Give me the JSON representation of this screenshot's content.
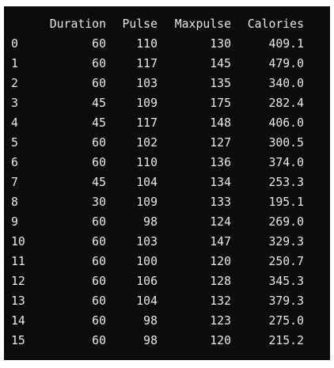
{
  "table": {
    "columns": [
      "Duration",
      "Pulse",
      "Maxpulse",
      "Calories"
    ],
    "rows": [
      {
        "index": "0",
        "Duration": "60",
        "Pulse": "110",
        "Maxpulse": "130",
        "Calories": "409.1"
      },
      {
        "index": "1",
        "Duration": "60",
        "Pulse": "117",
        "Maxpulse": "145",
        "Calories": "479.0"
      },
      {
        "index": "2",
        "Duration": "60",
        "Pulse": "103",
        "Maxpulse": "135",
        "Calories": "340.0"
      },
      {
        "index": "3",
        "Duration": "45",
        "Pulse": "109",
        "Maxpulse": "175",
        "Calories": "282.4"
      },
      {
        "index": "4",
        "Duration": "45",
        "Pulse": "117",
        "Maxpulse": "148",
        "Calories": "406.0"
      },
      {
        "index": "5",
        "Duration": "60",
        "Pulse": "102",
        "Maxpulse": "127",
        "Calories": "300.5"
      },
      {
        "index": "6",
        "Duration": "60",
        "Pulse": "110",
        "Maxpulse": "136",
        "Calories": "374.0"
      },
      {
        "index": "7",
        "Duration": "45",
        "Pulse": "104",
        "Maxpulse": "134",
        "Calories": "253.3"
      },
      {
        "index": "8",
        "Duration": "30",
        "Pulse": "109",
        "Maxpulse": "133",
        "Calories": "195.1"
      },
      {
        "index": "9",
        "Duration": "60",
        "Pulse": "98",
        "Maxpulse": "124",
        "Calories": "269.0"
      },
      {
        "index": "10",
        "Duration": "60",
        "Pulse": "103",
        "Maxpulse": "147",
        "Calories": "329.3"
      },
      {
        "index": "11",
        "Duration": "60",
        "Pulse": "100",
        "Maxpulse": "120",
        "Calories": "250.7"
      },
      {
        "index": "12",
        "Duration": "60",
        "Pulse": "106",
        "Maxpulse": "128",
        "Calories": "345.3"
      },
      {
        "index": "13",
        "Duration": "60",
        "Pulse": "104",
        "Maxpulse": "132",
        "Calories": "379.3"
      },
      {
        "index": "14",
        "Duration": "60",
        "Pulse": "98",
        "Maxpulse": "123",
        "Calories": "275.0"
      },
      {
        "index": "15",
        "Duration": "60",
        "Pulse": "98",
        "Maxpulse": "120",
        "Calories": "215.2"
      }
    ]
  },
  "colors": {
    "background": "#0c0c0c",
    "text": "#e8e8e8"
  }
}
